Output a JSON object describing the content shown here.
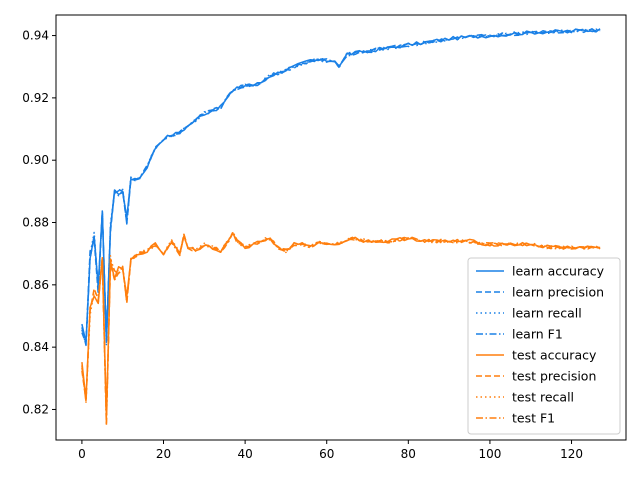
{
  "chart_data": {
    "type": "line",
    "title": "",
    "xlabel": "",
    "ylabel": "",
    "xlim": [
      -6.35,
      133.35
    ],
    "ylim": [
      0.8102,
      0.9466
    ],
    "xticks": [
      0,
      20,
      40,
      60,
      80,
      100,
      120
    ],
    "yticks": [
      0.82,
      0.84,
      0.86,
      0.88,
      0.9,
      0.92,
      0.94
    ],
    "ytick_labels": [
      "0.82",
      "0.84",
      "0.86",
      "0.88",
      "0.90",
      "0.92",
      "0.94"
    ],
    "grid": false,
    "legend_position": "lower-right",
    "colors": {
      "learn": "#1f77b4",
      "learn_display": "#1a80e6",
      "test": "#ff7f0e"
    },
    "learn_anchors": [
      [
        0,
        0.846
      ],
      [
        1,
        0.84
      ],
      [
        2,
        0.87
      ],
      [
        3,
        0.876
      ],
      [
        4,
        0.858
      ],
      [
        5,
        0.885
      ],
      [
        6,
        0.842
      ],
      [
        7,
        0.878
      ],
      [
        8,
        0.89
      ],
      [
        9,
        0.89
      ],
      [
        10,
        0.891
      ],
      [
        11,
        0.88
      ],
      [
        12,
        0.894
      ],
      [
        14,
        0.894
      ],
      [
        16,
        0.898
      ],
      [
        18,
        0.904
      ],
      [
        20,
        0.907
      ],
      [
        22,
        0.908
      ],
      [
        24,
        0.909
      ],
      [
        26,
        0.911
      ],
      [
        28,
        0.913
      ],
      [
        30,
        0.915
      ],
      [
        32,
        0.916
      ],
      [
        34,
        0.917
      ],
      [
        36,
        0.921
      ],
      [
        38,
        0.923
      ],
      [
        40,
        0.924
      ],
      [
        42,
        0.924
      ],
      [
        44,
        0.925
      ],
      [
        46,
        0.927
      ],
      [
        48,
        0.928
      ],
      [
        50,
        0.929
      ],
      [
        52,
        0.93
      ],
      [
        54,
        0.931
      ],
      [
        56,
        0.932
      ],
      [
        58,
        0.932
      ],
      [
        60,
        0.932
      ],
      [
        62,
        0.932
      ],
      [
        63,
        0.93
      ],
      [
        65,
        0.934
      ],
      [
        70,
        0.935
      ],
      [
        75,
        0.936
      ],
      [
        80,
        0.937
      ],
      [
        85,
        0.938
      ],
      [
        90,
        0.939
      ],
      [
        95,
        0.9395
      ],
      [
        100,
        0.94
      ],
      [
        105,
        0.9405
      ],
      [
        110,
        0.941
      ],
      [
        115,
        0.9412
      ],
      [
        120,
        0.9415
      ],
      [
        127,
        0.9418
      ]
    ],
    "test_anchors": [
      [
        0,
        0.834
      ],
      [
        1,
        0.823
      ],
      [
        2,
        0.852
      ],
      [
        3,
        0.858
      ],
      [
        4,
        0.855
      ],
      [
        5,
        0.867
      ],
      [
        6,
        0.816
      ],
      [
        7,
        0.868
      ],
      [
        8,
        0.863
      ],
      [
        9,
        0.864
      ],
      [
        10,
        0.865
      ],
      [
        11,
        0.855
      ],
      [
        12,
        0.868
      ],
      [
        14,
        0.87
      ],
      [
        16,
        0.871
      ],
      [
        18,
        0.873
      ],
      [
        20,
        0.87
      ],
      [
        22,
        0.874
      ],
      [
        24,
        0.87
      ],
      [
        25,
        0.876
      ],
      [
        26,
        0.872
      ],
      [
        28,
        0.871
      ],
      [
        30,
        0.873
      ],
      [
        32,
        0.872
      ],
      [
        34,
        0.871
      ],
      [
        36,
        0.874
      ],
      [
        37,
        0.877
      ],
      [
        38,
        0.874
      ],
      [
        40,
        0.872
      ],
      [
        42,
        0.873
      ],
      [
        44,
        0.874
      ],
      [
        46,
        0.875
      ],
      [
        48,
        0.872
      ],
      [
        50,
        0.871
      ],
      [
        52,
        0.873
      ],
      [
        54,
        0.873
      ],
      [
        56,
        0.872
      ],
      [
        58,
        0.874
      ],
      [
        60,
        0.873
      ],
      [
        62,
        0.873
      ],
      [
        64,
        0.874
      ],
      [
        66,
        0.875
      ],
      [
        70,
        0.874
      ],
      [
        75,
        0.874
      ],
      [
        80,
        0.875
      ],
      [
        85,
        0.874
      ],
      [
        90,
        0.874
      ],
      [
        95,
        0.874
      ],
      [
        100,
        0.873
      ],
      [
        105,
        0.873
      ],
      [
        110,
        0.873
      ],
      [
        115,
        0.872
      ],
      [
        120,
        0.872
      ],
      [
        127,
        0.872
      ]
    ],
    "series": [
      {
        "name": "learn accuracy",
        "group": "learn",
        "dash": "solid"
      },
      {
        "name": "learn precision",
        "group": "learn",
        "dash": "dashed"
      },
      {
        "name": "learn recall",
        "group": "learn",
        "dash": "dotted"
      },
      {
        "name": "learn F1",
        "group": "learn",
        "dash": "dashdot"
      },
      {
        "name": "test accuracy",
        "group": "test",
        "dash": "solid"
      },
      {
        "name": "test precision",
        "group": "test",
        "dash": "dashed"
      },
      {
        "name": "test recall",
        "group": "test",
        "dash": "dotted"
      },
      {
        "name": "test F1",
        "group": "test",
        "dash": "dashdot"
      }
    ]
  }
}
